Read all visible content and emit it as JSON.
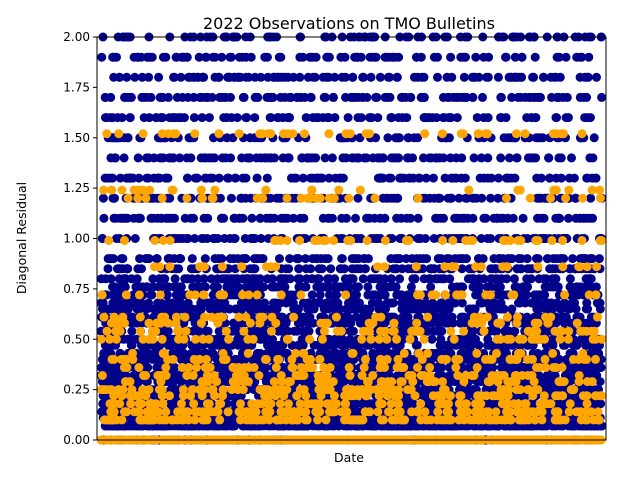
{
  "chart_data": {
    "type": "scatter",
    "title": "2022 Observations on TMO Bulletins",
    "xlabel": "Date",
    "ylabel": "Diagonal Residual",
    "ylim": [
      0.0,
      2.0
    ],
    "yticks": [
      "0.00",
      "0.25",
      "0.50",
      "0.75",
      "1.00",
      "1.25",
      "1.50",
      "1.75",
      "2.00"
    ],
    "grid": false,
    "legend": "none",
    "x_axis_ticks_shown": false,
    "series": [
      {
        "color": "#00008b",
        "count_approx": 6000,
        "note_values_by_level": [
          0.0,
          0.07,
          0.11,
          0.14,
          0.18,
          0.22,
          0.25,
          0.29,
          0.32,
          0.36,
          0.4,
          0.43,
          0.47,
          0.5,
          0.54,
          0.58,
          0.61,
          0.65,
          0.68,
          0.72,
          0.76,
          0.8,
          0.85,
          0.9,
          1.0,
          1.1,
          1.2,
          1.3,
          1.4,
          1.5,
          1.6,
          1.7,
          1.8,
          1.9,
          2.0
        ]
      },
      {
        "color": "#ffa500",
        "count_approx": 1500,
        "note_values_by_level": [
          0.0,
          0.1,
          0.14,
          0.18,
          0.22,
          0.25,
          0.29,
          0.32,
          0.36,
          0.4,
          0.43,
          0.5,
          0.54,
          0.58,
          0.61,
          0.72,
          0.86,
          0.99,
          1.2,
          1.24,
          1.52
        ]
      }
    ]
  }
}
